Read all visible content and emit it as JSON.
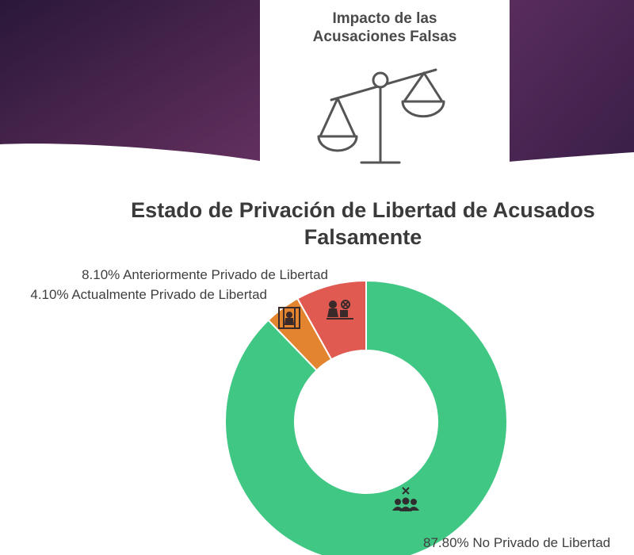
{
  "header": {
    "title_line1": "Impacto de las",
    "title_line2": "Acusaciones Falsas",
    "icon": "scales-icon"
  },
  "chart_data": {
    "type": "pie",
    "donut": true,
    "title_line1": "Estado de Privación de Libertad de Acusados",
    "title_line2": "Falsamente",
    "slices": [
      {
        "label": "8.10% Anteriormente Privado de Libertad",
        "name": "Anteriormente Privado de Libertad",
        "value": 8.1,
        "color": "#e15a52",
        "icon": "released-prisoner-icon"
      },
      {
        "label": "4.10% Actualmente Privado de Libertad",
        "name": "Actualmente Privado de Libertad",
        "value": 4.1,
        "color": "#e3842f",
        "icon": "jail-cell-icon"
      },
      {
        "label": "87.80% No Privado de Libertad",
        "name": "No Privado de Libertad",
        "value": 87.8,
        "color": "#41c784",
        "icon": "group-free-icon"
      }
    ]
  },
  "colors": {
    "banner_dark": "#2c1a3a",
    "banner_mid": "#5b2b62",
    "banner_light": "#6a3a72"
  }
}
